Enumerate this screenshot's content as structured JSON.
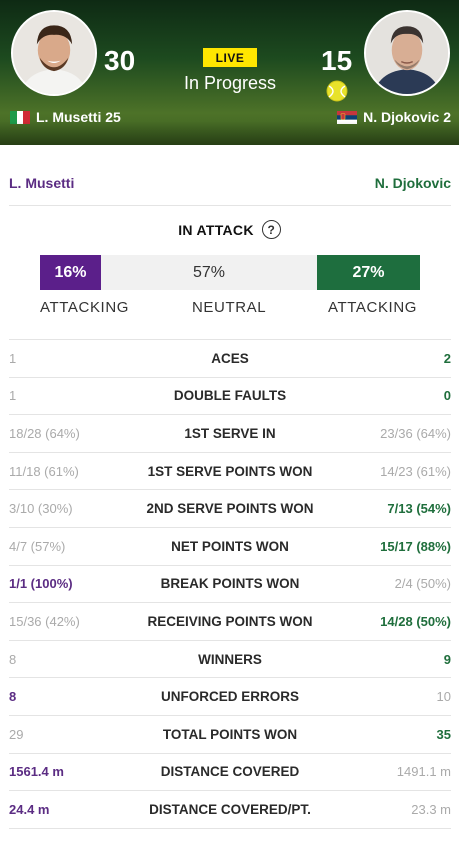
{
  "header": {
    "live_label": "LIVE",
    "status": "In Progress",
    "player1": {
      "name": "L. Musetti 25",
      "score": "30",
      "flag": "Italy"
    },
    "player2": {
      "name": "N. Djokovic 2",
      "score": "15",
      "flag": "Serbia",
      "serving": true
    }
  },
  "names": {
    "left": "L. Musetti",
    "right": "N. Djokovic"
  },
  "attack": {
    "title": "IN ATTACK",
    "help": "?",
    "left_pct": "16%",
    "neutral_pct": "57%",
    "right_pct": "27%",
    "left_fraction": 0.16,
    "neutral_fraction": 0.57,
    "right_fraction": 0.27,
    "labels": {
      "left": "ATTACKING",
      "middle": "NEUTRAL",
      "right": "ATTACKING"
    }
  },
  "stats": [
    {
      "label": "ACES",
      "left": "1",
      "right": "2",
      "leader": "right"
    },
    {
      "label": "DOUBLE FAULTS",
      "left": "1",
      "right": "0",
      "leader": "right"
    },
    {
      "label": "1ST SERVE IN",
      "left": "18/28 (64%)",
      "right": "23/36 (64%)",
      "leader": "none"
    },
    {
      "label": "1ST SERVE POINTS WON",
      "left": "11/18 (61%)",
      "right": "14/23 (61%)",
      "leader": "none"
    },
    {
      "label": "2ND SERVE POINTS WON",
      "left": "3/10 (30%)",
      "right": "7/13 (54%)",
      "leader": "right"
    },
    {
      "label": "NET POINTS WON",
      "left": "4/7 (57%)",
      "right": "15/17 (88%)",
      "leader": "right"
    },
    {
      "label": "BREAK POINTS WON",
      "left": "1/1 (100%)",
      "right": "2/4 (50%)",
      "leader": "left"
    },
    {
      "label": "RECEIVING POINTS WON",
      "left": "15/36 (42%)",
      "right": "14/28 (50%)",
      "leader": "right"
    },
    {
      "label": "WINNERS",
      "left": "8",
      "right": "9",
      "leader": "right"
    },
    {
      "label": "UNFORCED ERRORS",
      "left": "8",
      "right": "10",
      "leader": "left"
    },
    {
      "label": "TOTAL POINTS WON",
      "left": "29",
      "right": "35",
      "leader": "right"
    },
    {
      "label": "DISTANCE COVERED",
      "left": "1561.4 m",
      "right": "1491.1 m",
      "leader": "left"
    },
    {
      "label": "DISTANCE COVERED/PT.",
      "left": "24.4 m",
      "right": "23.3 m",
      "leader": "left"
    }
  ],
  "colors": {
    "player1": "#5b2c83",
    "player2": "#1f6e3c",
    "muted": "#aaaaaa",
    "live": "#ffe600"
  }
}
